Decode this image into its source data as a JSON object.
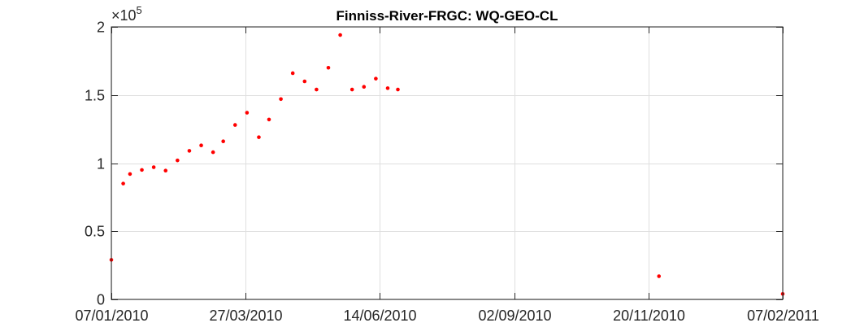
{
  "chart_data": {
    "type": "scatter",
    "title": "Finniss-River-FRGC: WQ-GEO-CL",
    "xlabel": "",
    "ylabel": "",
    "x_axis_type": "date",
    "xlim": [
      "2010-01-07",
      "2011-02-07"
    ],
    "ylim": [
      0,
      200000
    ],
    "x_ticks": [
      "2010-01-07",
      "2010-03-27",
      "2010-06-14",
      "2010-09-02",
      "2010-11-20",
      "2011-02-07"
    ],
    "x_tick_labels": [
      "07/01/2010",
      "27/03/2010",
      "14/06/2010",
      "02/09/2010",
      "20/11/2010",
      "07/02/2011"
    ],
    "y_ticks": [
      0,
      0.5,
      1,
      1.5,
      2
    ],
    "y_tick_labels": [
      "0",
      "0.5",
      "1",
      "1.5",
      "2"
    ],
    "y_exponent": {
      "prefix": "×10",
      "power": "5"
    },
    "grid": true,
    "marker_color": "#ff0000",
    "series": [
      {
        "points": [
          {
            "x": "2010-01-07",
            "y": 29000
          },
          {
            "x": "2010-01-14",
            "y": 85000
          },
          {
            "x": "2010-01-18",
            "y": 92000
          },
          {
            "x": "2010-01-25",
            "y": 95000
          },
          {
            "x": "2010-02-01",
            "y": 97000
          },
          {
            "x": "2010-02-08",
            "y": 94500
          },
          {
            "x": "2010-02-15",
            "y": 102000
          },
          {
            "x": "2010-02-22",
            "y": 109000
          },
          {
            "x": "2010-03-01",
            "y": 113000
          },
          {
            "x": "2010-03-08",
            "y": 108000
          },
          {
            "x": "2010-03-14",
            "y": 116000
          },
          {
            "x": "2010-03-21",
            "y": 128000
          },
          {
            "x": "2010-03-28",
            "y": 137000
          },
          {
            "x": "2010-04-04",
            "y": 119000
          },
          {
            "x": "2010-04-10",
            "y": 132000
          },
          {
            "x": "2010-04-17",
            "y": 147000
          },
          {
            "x": "2010-04-24",
            "y": 166000
          },
          {
            "x": "2010-05-01",
            "y": 160000
          },
          {
            "x": "2010-05-08",
            "y": 154000
          },
          {
            "x": "2010-05-15",
            "y": 170000
          },
          {
            "x": "2010-05-22",
            "y": 194000
          },
          {
            "x": "2010-05-29",
            "y": 154000
          },
          {
            "x": "2010-06-05",
            "y": 156000
          },
          {
            "x": "2010-06-12",
            "y": 162000
          },
          {
            "x": "2010-06-19",
            "y": 155000
          },
          {
            "x": "2010-06-25",
            "y": 154000
          },
          {
            "x": "2010-11-26",
            "y": 17000
          },
          {
            "x": "2011-02-07",
            "y": 4000
          }
        ]
      }
    ]
  }
}
